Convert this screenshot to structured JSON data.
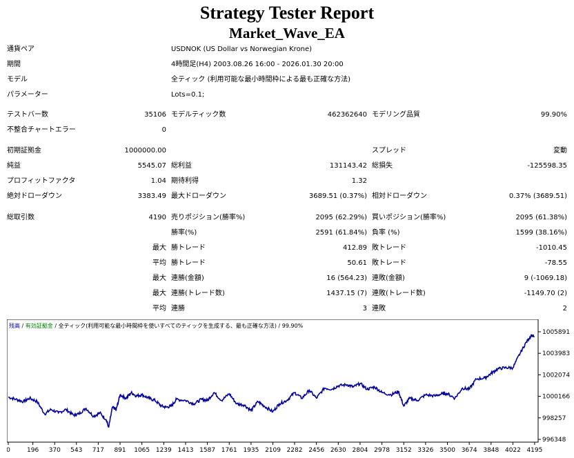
{
  "header": {
    "title": "Strategy Tester Report",
    "subtitle": "Market_Wave_EA"
  },
  "info": {
    "symbol_label": "通貨ペア",
    "symbol_value": "USDNOK (US Dollar vs Norwegian Krone)",
    "period_label": "期間",
    "period_value": "4時間足(H4) 2003.08.26 16:00 - 2026.01.30 20:00",
    "model_label": "モデル",
    "model_value": "全ティック (利用可能な最小時間枠による最も正確な方法)",
    "params_label": "パラメーター",
    "params_value": "Lots=0.1;"
  },
  "stats": {
    "bars_label": "テストバー数",
    "bars_value": "35106",
    "ticks_label": "モデルティック数",
    "ticks_value": "462362640",
    "quality_label": "モデリング品質",
    "quality_value": "99.90%",
    "mismatch_label": "不整合チャートエラー",
    "mismatch_value": "0",
    "deposit_label": "初期証拠金",
    "deposit_value": "1000000.00",
    "spread_label": "スプレッド",
    "spread_value": "変動",
    "netprofit_label": "純益",
    "netprofit_value": "5545.07",
    "grossprofit_label": "総利益",
    "grossprofit_value": "131143.42",
    "grossloss_label": "総損失",
    "grossloss_value": "-125598.35",
    "pf_label": "プロフィットファクタ",
    "pf_value": "1.04",
    "payoff_label": "期待利得",
    "payoff_value": "1.32",
    "absdd_label": "絶対ドローダウン",
    "absdd_value": "3383.49",
    "maxdd_label": "最大ドローダウン",
    "maxdd_value": "3689.51 (0.37%)",
    "reldd_label": "相対ドローダウン",
    "reldd_value": "0.37% (3689.51)",
    "trades_label": "総取引数",
    "trades_value": "4190",
    "short_label": "売りポジション(勝率%)",
    "short_value": "2095 (62.29%)",
    "long_label": "買いポジション(勝率%)",
    "long_value": "2095 (61.38%)",
    "win_label": "勝率(%)",
    "win_value": "2591 (61.84%)",
    "loss_label": "負率 (%)",
    "loss_value": "1599 (38.16%)",
    "largest_prefix": "最大",
    "largest_win_label": "勝トレード",
    "largest_win_value": "412.89",
    "largest_loss_label": "敗トレード",
    "largest_loss_value": "-1010.45",
    "average_prefix": "平均",
    "avg_win_label": "勝トレード",
    "avg_win_value": "50.61",
    "avg_loss_label": "敗トレード",
    "avg_loss_value": "-78.55",
    "maxcons_prefix": "最大",
    "maxcons_win_label": "連勝(金額)",
    "maxcons_win_value": "16 (564.23)",
    "maxcons_loss_label": "連敗(金額)",
    "maxcons_loss_value": "9 (-1069.18)",
    "maxcons2_prefix": "最大",
    "maxprofit_label": "連勝(トレード数)",
    "maxprofit_value": "1437.15 (7)",
    "maxloss_label": "連敗(トレード数)",
    "maxloss_value": "-1149.70 (2)",
    "avgcons_prefix": "平均",
    "avgcons_win_label": "連勝",
    "avgcons_win_value": "3",
    "avgcons_loss_label": "連敗",
    "avgcons_loss_value": "2"
  },
  "chart_data": {
    "type": "line",
    "legend": {
      "balance": "残高",
      "sep1": " / ",
      "equity": "有効証拠金",
      "sep2": " / ",
      "model": "全ティック(利用可能な最小時間枠を使いすべてのティックを生成する、最も正確な方法)",
      "sep3": " / ",
      "quality": "99.90%"
    },
    "x_ticks": [
      "0",
      "196",
      "370",
      "543",
      "717",
      "891",
      "1065",
      "1239",
      "1413",
      "1587",
      "1761",
      "1935",
      "2109",
      "2282",
      "2456",
      "2630",
      "2804",
      "2978",
      "3152",
      "3326",
      "3500",
      "3674",
      "3848",
      "4022",
      "4195"
    ],
    "y_ticks": [
      "1005891",
      "1003983",
      "1002074",
      "1000166",
      "998257",
      "996348"
    ],
    "xlim": [
      0,
      4190
    ],
    "ylim": [
      996348,
      1005891
    ],
    "line_color": "#0000a0",
    "series": [
      {
        "x": [
          0,
          60,
          120,
          170,
          230,
          290,
          340,
          400,
          460,
          520,
          560,
          620,
          680,
          730,
          780,
          800,
          830,
          860,
          891,
          940,
          980,
          1020,
          1065,
          1120,
          1170,
          1220,
          1260,
          1300,
          1340,
          1413,
          1480,
          1540,
          1587,
          1640,
          1700,
          1761,
          1820,
          1880,
          1935,
          1990,
          2040,
          2109,
          2160,
          2220,
          2282,
          2340,
          2400,
          2456,
          2520,
          2580,
          2630,
          2700,
          2750,
          2804,
          2860,
          2920,
          2978,
          3050,
          3110,
          3152,
          3200,
          3260,
          3326,
          3400,
          3460,
          3500,
          3560,
          3620,
          3674,
          3730,
          3800,
          3848,
          3900,
          3960,
          4022,
          4080,
          4130,
          4170,
          4190
        ],
        "y": [
          1000100,
          999900,
          999700,
          1000000,
          999700,
          998600,
          999000,
          998700,
          999000,
          998500,
          998600,
          999100,
          998400,
          998700,
          998100,
          997400,
          999200,
          999000,
          1000300,
          1000000,
          1000500,
          1000200,
          1000300,
          1000000,
          999800,
          999300,
          999200,
          999300,
          999900,
          999800,
          999500,
          999900,
          999800,
          1000500,
          999800,
          1000400,
          999500,
          999400,
          998900,
          999700,
          999300,
          998800,
          999500,
          999800,
          1000500,
          1000000,
          1000700,
          1000000,
          1000900,
          1000800,
          1001100,
          1001200,
          1001000,
          1001300,
          1000800,
          1001000,
          1000500,
          1000300,
          1000600,
          999300,
          1000000,
          999800,
          1000300,
          1000200,
          1000400,
          1000400,
          1000000,
          1000900,
          1000800,
          1001700,
          1001800,
          1002200,
          1002600,
          1002700,
          1002700,
          1004000,
          1005000,
          1005600,
          1005400
        ]
      }
    ]
  }
}
